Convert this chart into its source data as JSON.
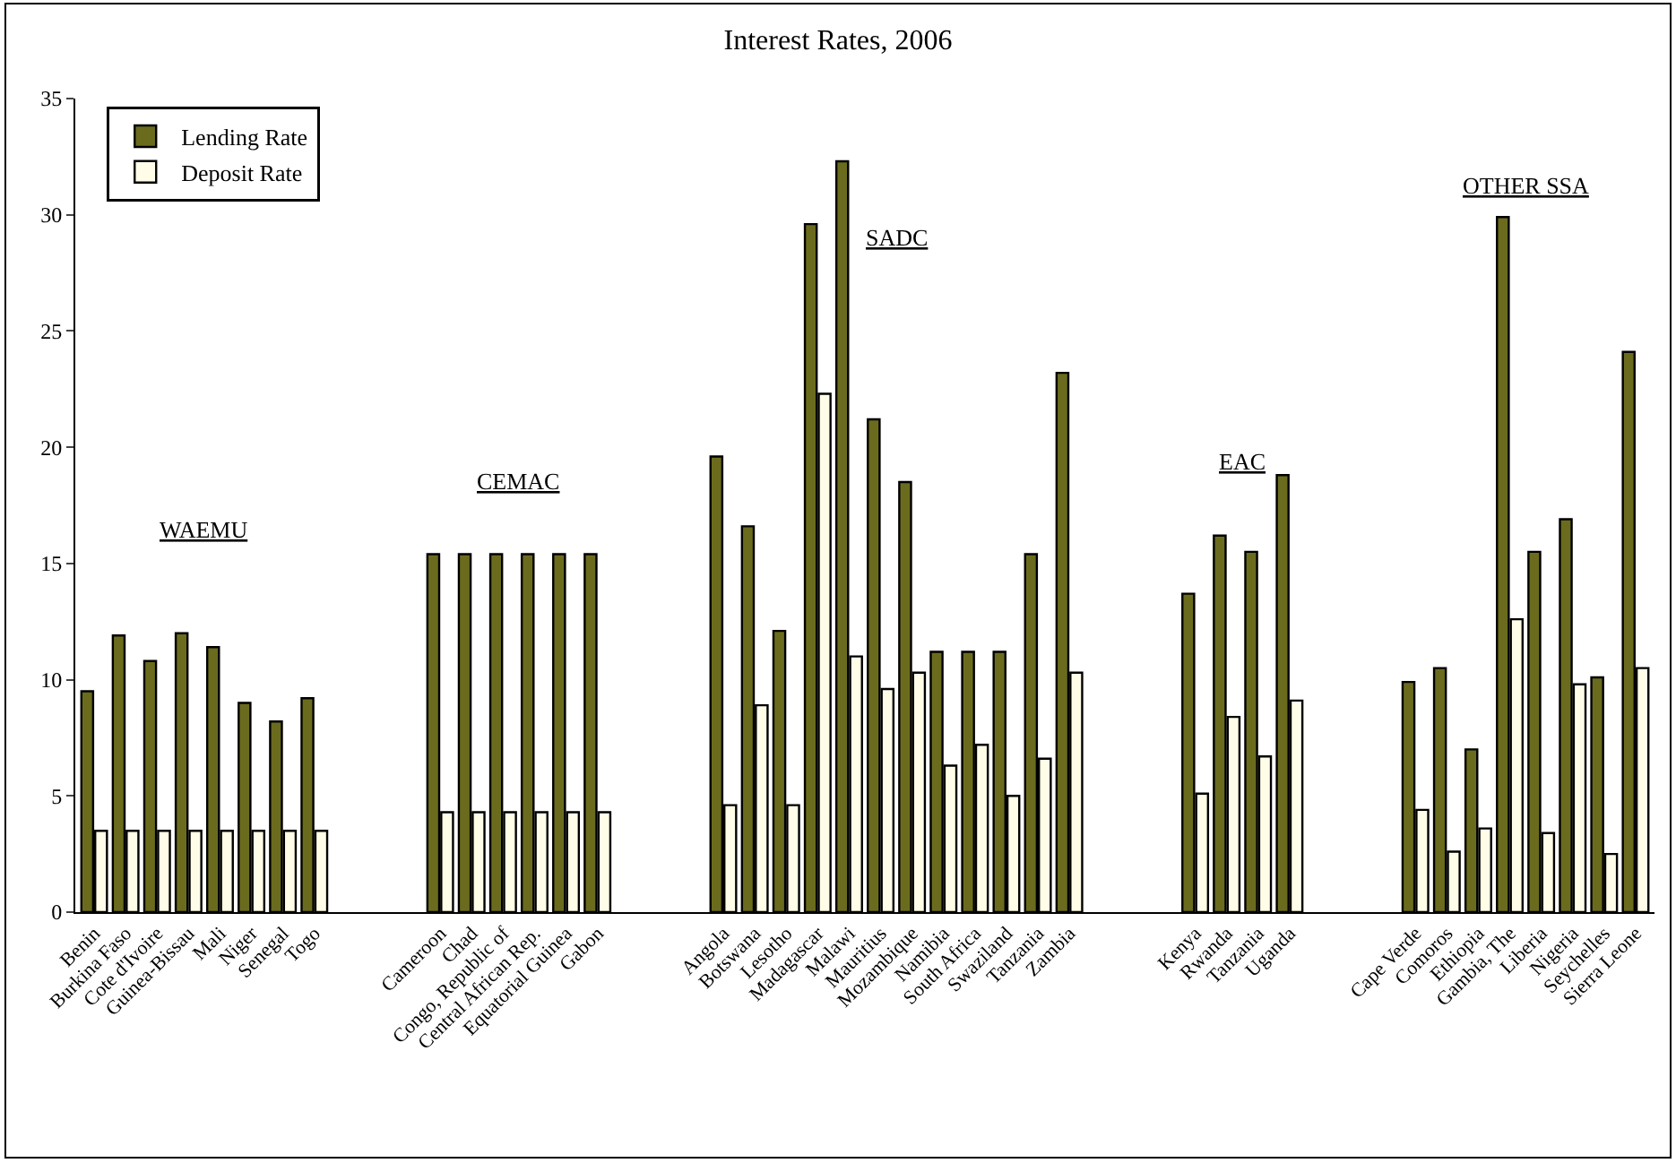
{
  "chart_data": {
    "type": "bar",
    "title": "Interest Rates, 2006",
    "categories": [
      "Benin",
      "Burkina Faso",
      "Cote d'Ivoire",
      "Guinea-Bissau",
      "Mali",
      "Niger",
      "Senegal",
      "Togo",
      null,
      null,
      null,
      "Cameroon",
      "Chad",
      "Congo, Republic of",
      "Central African Rep.",
      "Equatorial Guinea",
      "Gabon",
      null,
      null,
      null,
      "Angola",
      "Botswana",
      "Lesotho",
      "Madagascar",
      "Malawi",
      "Mauritius",
      "Mozambique",
      "Namibia",
      "South Africa",
      "Swaziland",
      "Tanzania",
      "Zambia",
      null,
      null,
      null,
      "Kenya",
      "Rwanda",
      "Tanzania",
      "Uganda",
      null,
      null,
      null,
      "Cape Verde",
      "Comoros",
      "Ethiopia",
      "Gambia, The",
      "Liberia",
      "Nigeria",
      "Seychelles",
      "Sierra Leone"
    ],
    "series": [
      {
        "name": "Lending Rate",
        "color": "#6b6b1e",
        "values": [
          9.5,
          11.9,
          10.8,
          12.0,
          11.4,
          9.0,
          8.2,
          9.2,
          null,
          null,
          null,
          15.4,
          15.4,
          15.4,
          15.4,
          15.4,
          15.4,
          null,
          null,
          null,
          19.6,
          16.6,
          12.1,
          29.6,
          32.3,
          21.2,
          18.5,
          11.2,
          11.2,
          11.2,
          15.4,
          23.2,
          null,
          null,
          null,
          13.7,
          16.2,
          15.5,
          18.8,
          null,
          null,
          null,
          9.9,
          10.5,
          7.0,
          29.9,
          15.5,
          16.9,
          10.1,
          24.1
        ]
      },
      {
        "name": "Deposit Rate",
        "color": "#fffde8",
        "values": [
          3.5,
          3.5,
          3.5,
          3.5,
          3.5,
          3.5,
          3.5,
          3.5,
          null,
          null,
          null,
          4.3,
          4.3,
          4.3,
          4.3,
          4.3,
          4.3,
          null,
          null,
          null,
          4.6,
          8.9,
          4.6,
          22.3,
          11.0,
          9.6,
          10.3,
          6.3,
          7.2,
          5.0,
          6.6,
          10.3,
          null,
          null,
          null,
          5.1,
          8.4,
          6.7,
          9.1,
          null,
          null,
          null,
          4.4,
          2.6,
          3.6,
          12.6,
          3.4,
          9.8,
          2.5,
          10.5
        ]
      }
    ],
    "ylim": [
      0,
      35
    ],
    "yticks": [
      0,
      5,
      10,
      15,
      20,
      25,
      30,
      35
    ],
    "legend": "top left",
    "annotations": [
      "WAEMU",
      "CEMAC",
      "SADC",
      "EAC",
      "OTHER SSA"
    ]
  }
}
